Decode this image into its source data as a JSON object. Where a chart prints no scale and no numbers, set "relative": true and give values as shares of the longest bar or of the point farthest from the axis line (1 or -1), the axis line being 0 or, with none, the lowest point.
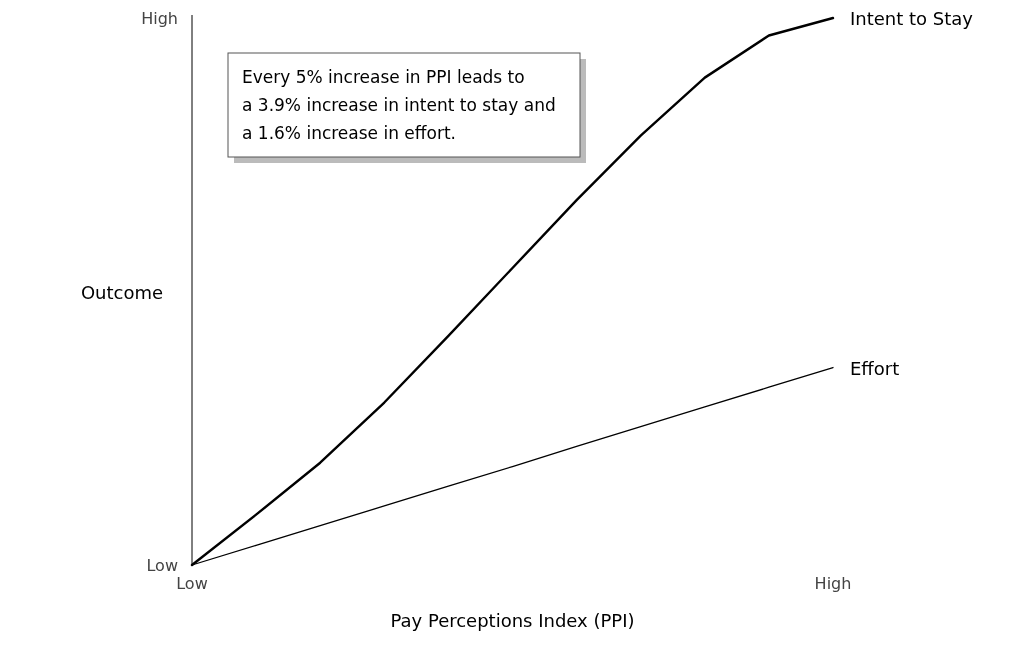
{
  "chart_data": {
    "type": "line",
    "xlabel": "Pay Perceptions Index (PPI)",
    "ylabel": "Outcome",
    "relative": true,
    "categories": [
      null,
      null,
      null,
      null,
      null,
      null,
      null,
      null,
      null,
      null,
      null
    ],
    "series": [
      {
        "name": "Intent to Stay",
        "color": "#000000",
        "values": [
          0,
          0.092,
          0.187,
          0.297,
          0.419,
          0.543,
          0.667,
          0.785,
          0.891,
          0.968,
          1
        ]
      },
      {
        "name": "Effort",
        "color": "#000000",
        "values": [
          0,
          0.036,
          0.072,
          0.108,
          0.144,
          0.18,
          0.217,
          0.253,
          0.289,
          0.325,
          0.361
        ]
      }
    ],
    "annotations": [
      "Every 5% increase in PPI leads to\na 3.9% increase in intent to stay and\na 1.6% increase in effort.",
      "High",
      "Low",
      "Low",
      "High"
    ],
    "legend": false,
    "marker": "none",
    "line_style": "solid"
  }
}
